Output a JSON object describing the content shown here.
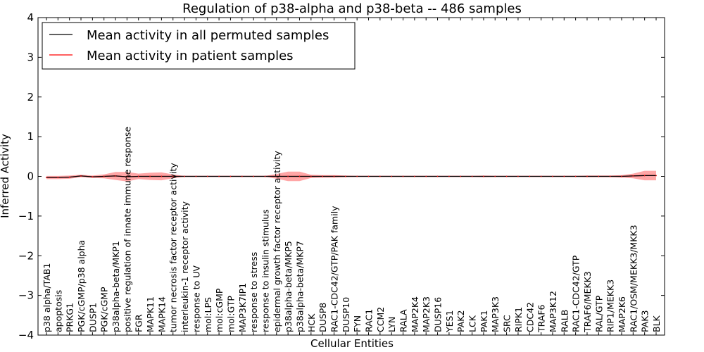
{
  "chart_data": {
    "type": "line",
    "title": "Regulation of p38-alpha and p38-beta -- 486 samples",
    "xlabel": "Cellular Entities",
    "ylabel": "Inferred Activity",
    "ylim": [
      -4,
      4
    ],
    "yticks": [
      -4,
      -3,
      -2,
      -1,
      0,
      1,
      2,
      3,
      4
    ],
    "legend_position": "top-left",
    "categories": [
      "p38 alpha/TAB1",
      "apoptosis",
      "PRKG1",
      "PGK/cGMP/p38 alpha",
      "DUSP1",
      "PGK/cGMP",
      "p38alpha-beta/MKP1",
      "positive regulation of innate immune response",
      "FGR",
      "MAPK11",
      "MAPK14",
      "tumor necrosis factor receptor activity",
      "interleukin-1 receptor activity",
      "response to UV",
      "mol:LPS",
      "mol:cGMP",
      "mol:GTP",
      "MAP3K7IP1",
      "response to stress",
      "response to insulin stimulus",
      "epidermal growth factor receptor activity",
      "p38alpha-beta/MKP5",
      "p38alpha-beta/MKP7",
      "HCK",
      "DUSP8",
      "RAC1-CDC42/GTP/PAK family",
      "DUSP10",
      "FYN",
      "RAC1",
      "CCM2",
      "LYN",
      "RALA",
      "MAP2K4",
      "MAP2K3",
      "DUSP16",
      "YES1",
      "PAK2",
      "LCK",
      "PAK1",
      "MAP3K3",
      "SRC",
      "RIPK1",
      "CDC42",
      "TRAF6",
      "MAP3K12",
      "RALB",
      "RAC1-CDC42/GTP",
      "TRAF6/MEKK3",
      "RAL/GTP",
      "RIP1/MEKK3",
      "MAP2K6",
      "RAC1/OSM/MEKK3/MKK3",
      "PAK3",
      "BLK"
    ],
    "series": [
      {
        "name": "Mean activity in all permuted samples",
        "color": "#000000",
        "values": [
          -0.03,
          -0.03,
          -0.02,
          0.01,
          -0.01,
          0,
          0.01,
          -0.01,
          0,
          0,
          0,
          0,
          0,
          0,
          0,
          0,
          0,
          0,
          0,
          0,
          0,
          0,
          0,
          0,
          0,
          0,
          0,
          0,
          0,
          0,
          0,
          0,
          0,
          0,
          0,
          0,
          0,
          0,
          0,
          0,
          0,
          0,
          0,
          0,
          0,
          0,
          0,
          0,
          0,
          0,
          0,
          0.01,
          0.02,
          0.02
        ]
      },
      {
        "name": "Mean activity in patient samples",
        "color": "#ff0000",
        "values": [
          -0.03,
          -0.03,
          -0.02,
          0.01,
          -0.01,
          0,
          0.01,
          -0.01,
          0,
          0,
          0,
          0,
          0,
          0,
          0,
          0,
          0,
          0,
          0,
          0,
          0,
          0,
          0,
          0,
          0,
          0,
          0,
          0,
          0,
          0,
          0,
          0,
          0,
          0,
          0,
          0,
          0,
          0,
          0,
          0,
          0,
          0,
          0,
          0,
          0,
          0,
          0,
          0,
          0,
          0,
          0,
          0.01,
          0.02,
          0.02
        ],
        "band_halfwidth": [
          0.04,
          0.04,
          0.04,
          0.03,
          0.03,
          0.05,
          0.1,
          0.12,
          0.07,
          0.09,
          0.1,
          0.05,
          0.01,
          0.01,
          0.01,
          0.01,
          0.01,
          0.01,
          0.01,
          0.01,
          0.06,
          0.12,
          0.12,
          0.04,
          0.03,
          0.03,
          0.02,
          0.01,
          0.01,
          0.01,
          0.01,
          0.01,
          0.01,
          0.01,
          0.01,
          0.01,
          0.01,
          0.01,
          0.02,
          0.01,
          0.01,
          0.01,
          0.01,
          0.01,
          0.01,
          0.01,
          0.01,
          0.02,
          0.02,
          0.02,
          0.03,
          0.06,
          0.12,
          0.12
        ]
      }
    ]
  }
}
